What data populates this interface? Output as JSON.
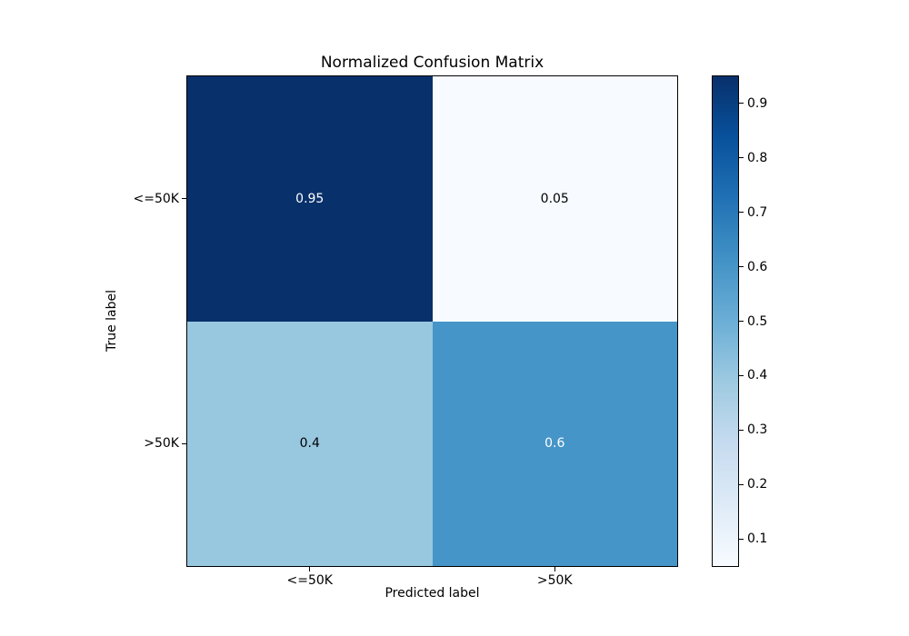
{
  "figure": {
    "background": "#ffffff",
    "text_color": "#000000"
  },
  "chart_data": {
    "type": "heatmap",
    "title": "Normalized Confusion Matrix",
    "xlabel": "Predicted label",
    "ylabel": "True label",
    "x_tick_labels": [
      "<=50K",
      ">50K"
    ],
    "y_tick_labels": [
      "<=50K",
      ">50K"
    ],
    "matrix": [
      [
        0.95,
        0.05
      ],
      [
        0.4,
        0.6
      ]
    ],
    "cells": [
      {
        "row": 0,
        "col": 0,
        "value": 0.95,
        "label": "0.95",
        "bg": "#08306b",
        "fg": "#ffffff"
      },
      {
        "row": 0,
        "col": 1,
        "value": 0.05,
        "label": "0.05",
        "bg": "#f7fbff",
        "fg": "#000000"
      },
      {
        "row": 1,
        "col": 0,
        "value": 0.4,
        "label": "0.4",
        "bg": "#98c7e0",
        "fg": "#000000"
      },
      {
        "row": 1,
        "col": 1,
        "value": 0.6,
        "label": "0.6",
        "bg": "#4695c8",
        "fg": "#ffffff"
      }
    ],
    "colormap": {
      "name": "Blues",
      "stops": [
        "#f7fbff",
        "#deebf7",
        "#c6dbef",
        "#9ecae1",
        "#6baed6",
        "#4292c6",
        "#2171b5",
        "#08519c",
        "#08306b"
      ]
    },
    "vmin": 0.05,
    "vmax": 0.95,
    "colorbar_ticks": [
      "0.1",
      "0.2",
      "0.3",
      "0.4",
      "0.5",
      "0.6",
      "0.7",
      "0.8",
      "0.9"
    ],
    "grid": false,
    "legend_position": "colorbar-right"
  }
}
